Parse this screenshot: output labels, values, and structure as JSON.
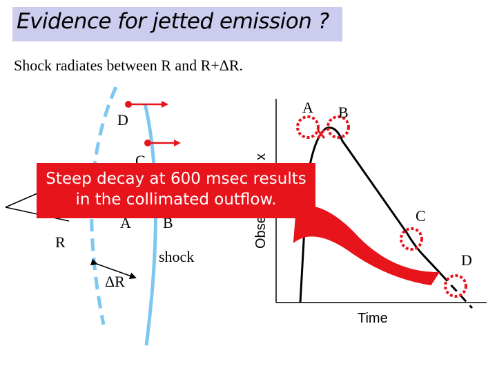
{
  "title": "Evidence for jetted emission ?",
  "subtitle": "Shock radiates between  R  and  R+ΔR.",
  "callout": {
    "line1": "Steep decay at 600 msec results",
    "line2": "in the collimated outflow."
  },
  "left_diagram": {
    "labels": {
      "point_d": "D",
      "point_c": "C",
      "point_a": "A",
      "point_b": "B",
      "radius": "R",
      "delta_r": "ΔR",
      "shock": "shock"
    }
  },
  "plot": {
    "ylabel": "Obse",
    "ylabel_tail": "x",
    "xlabel": "Time",
    "markers": {
      "a": "A",
      "b": "B",
      "c": "C",
      "d": "D"
    }
  },
  "colors": {
    "title_bg": "#ccccee",
    "callout_bg": "#e8141c",
    "shock_front": "#7ec8f0",
    "arrow": "#e8141c",
    "marker": "#e8141c"
  }
}
